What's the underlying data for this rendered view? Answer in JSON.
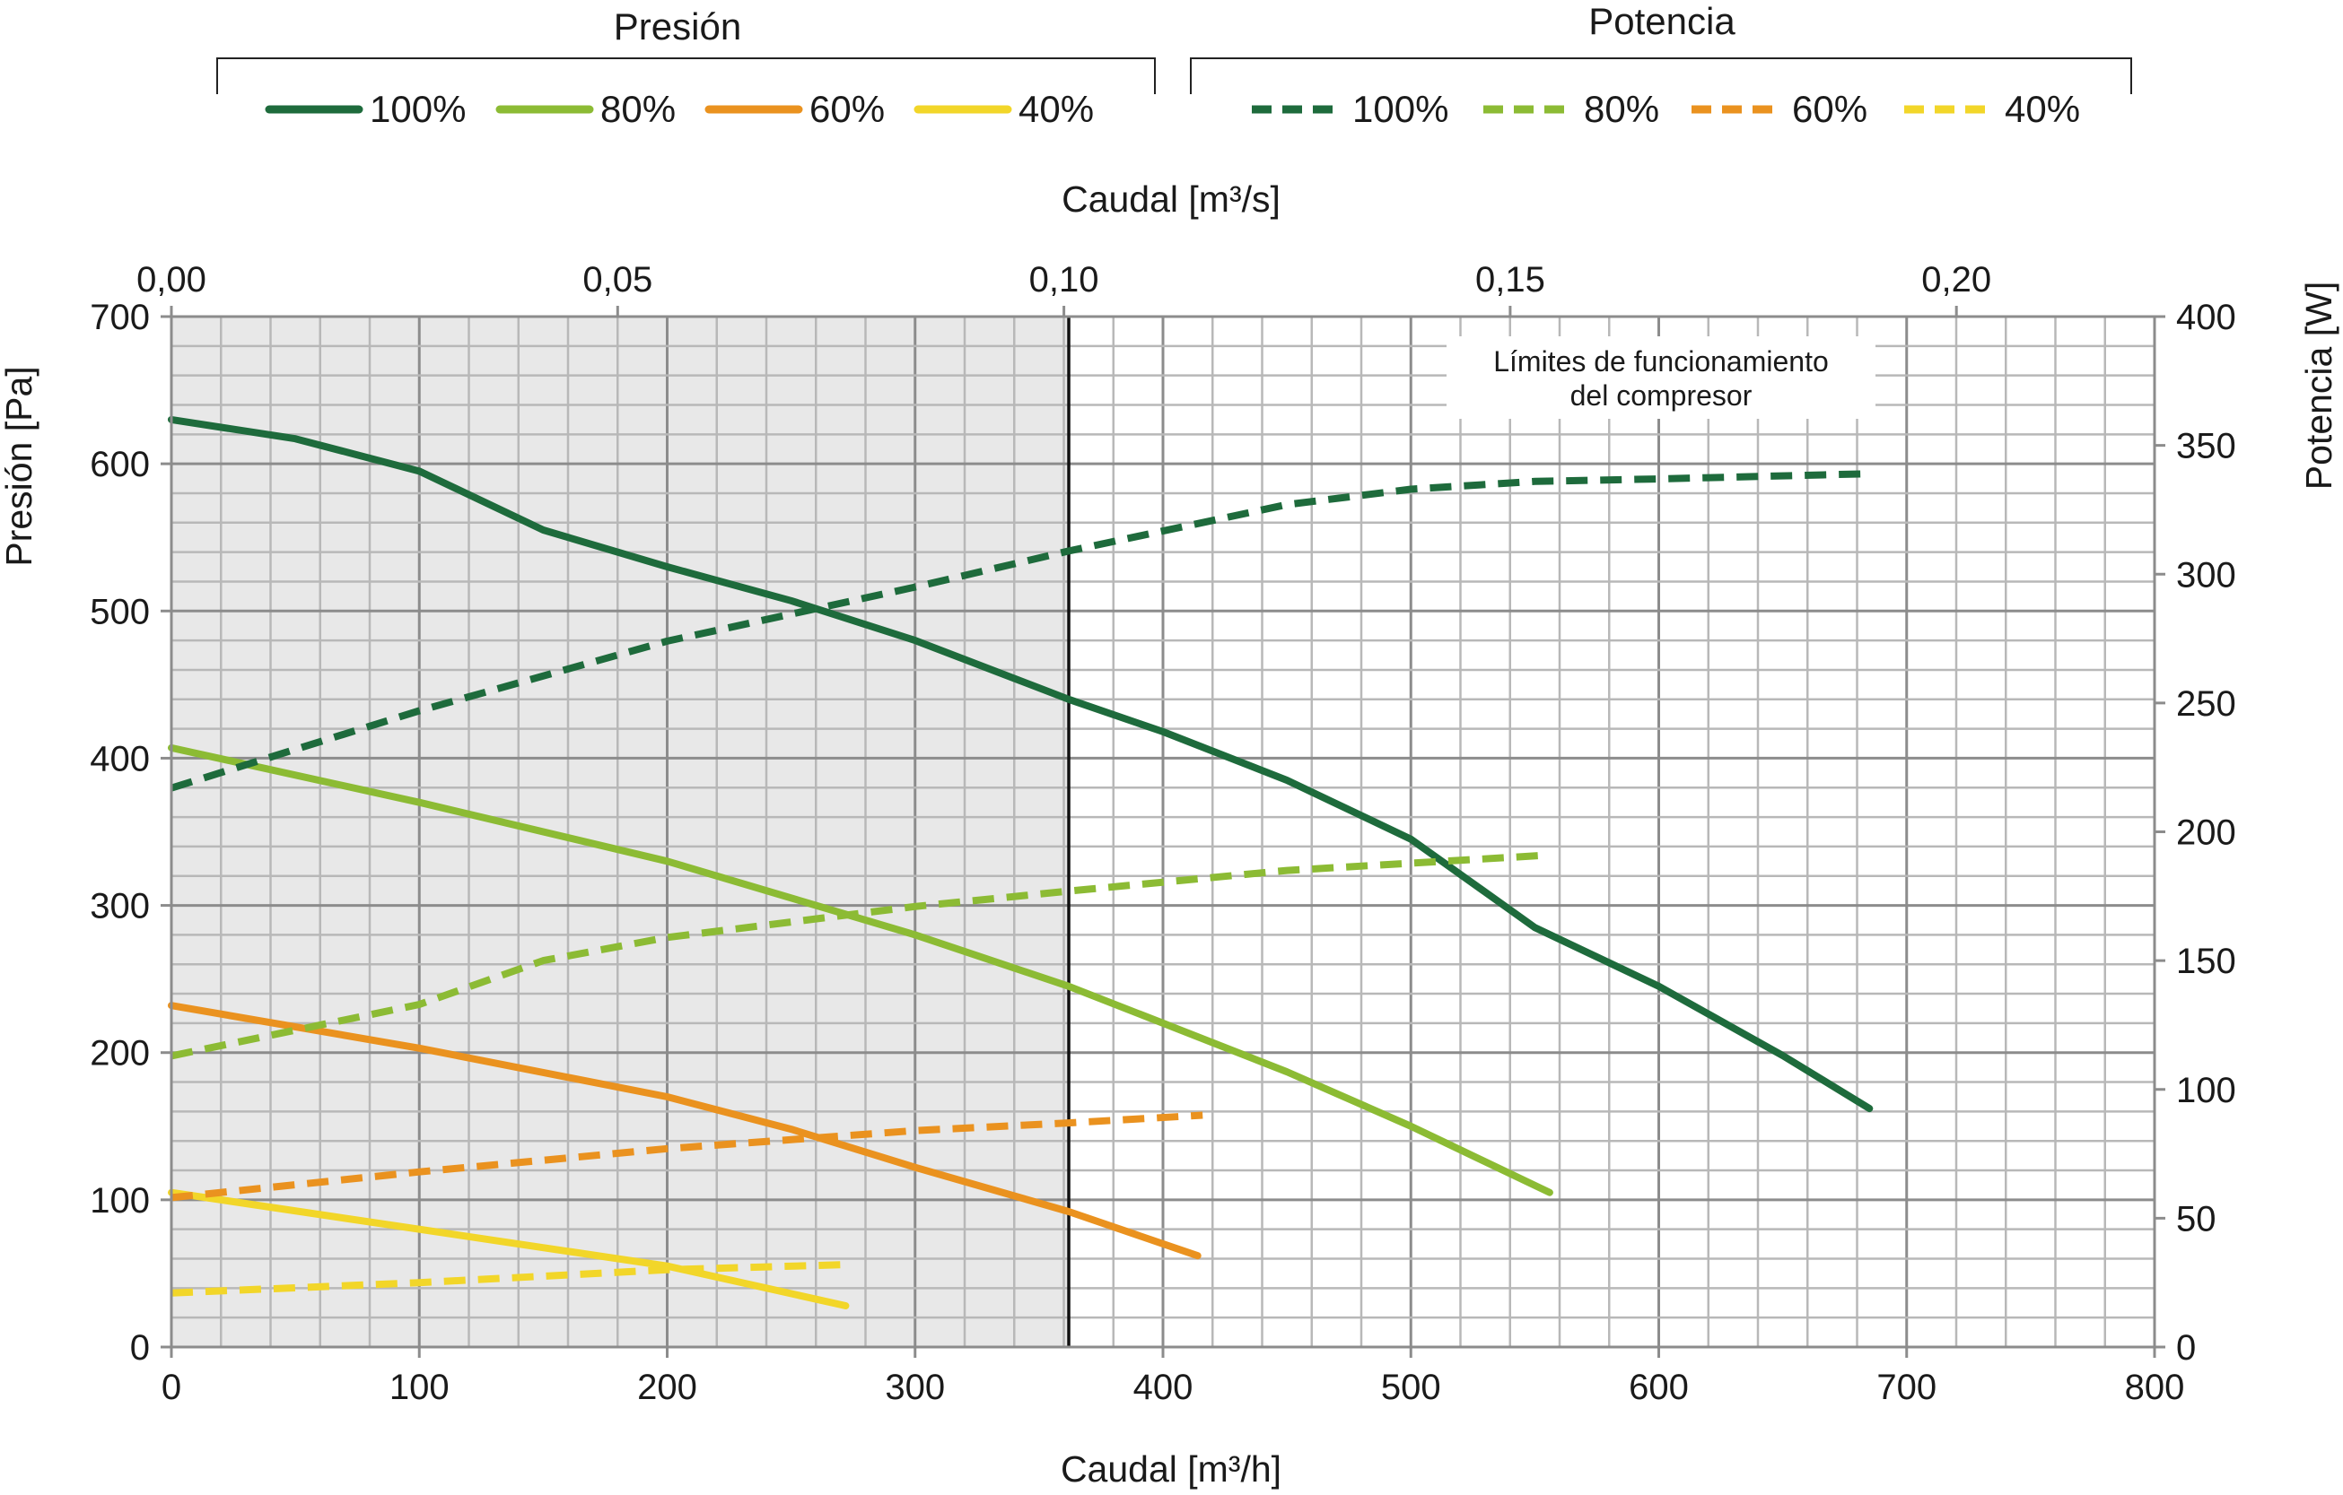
{
  "chart_data": {
    "type": "line",
    "legend": {
      "position": "top",
      "groups": [
        {
          "title": "Presión",
          "entries": [
            "100%",
            "80%",
            "60%",
            "40%"
          ],
          "style": "solid"
        },
        {
          "title": "Potencia",
          "entries": [
            "100%",
            "80%",
            "60%",
            "40%"
          ],
          "style": "dashed"
        }
      ]
    },
    "x_axis": {
      "label": "Caudal [m³/h]",
      "range": [
        0,
        800
      ],
      "ticks": [
        "0",
        "100",
        "200",
        "300",
        "400",
        "500",
        "600",
        "700",
        "800"
      ]
    },
    "x2_axis": {
      "label": "Caudal [m³/s]",
      "range": [
        0,
        0.2222
      ],
      "ticks": [
        "0,00",
        "0,05",
        "0,10",
        "0,15",
        "0,20"
      ],
      "tick_values": [
        0,
        0.05,
        0.1,
        0.15,
        0.2
      ]
    },
    "y_axis": {
      "label": "Presión [Pa]",
      "range": [
        0,
        700
      ],
      "ticks": [
        "0",
        "100",
        "200",
        "300",
        "400",
        "500",
        "600",
        "700"
      ]
    },
    "y2_axis": {
      "label": "Potencia [W]",
      "range": [
        0,
        400
      ],
      "ticks": [
        "0",
        "50",
        "100",
        "150",
        "200",
        "250",
        "300",
        "350",
        "400"
      ]
    },
    "grid": true,
    "shaded_region": {
      "x_from": 0,
      "x_to": 362
    },
    "annotation": {
      "x": 362,
      "lines": [
        "Límites de funcionamiento",
        "del compresor"
      ]
    },
    "colors": {
      "100%": "#1e6b3c",
      "80%": "#8cbb34",
      "60%": "#ea921f",
      "40%": "#f2d629"
    },
    "series": [
      {
        "group": "Presión",
        "name": "100%",
        "axis": "left",
        "style": "solid",
        "points": [
          [
            0,
            630
          ],
          [
            50,
            617
          ],
          [
            100,
            595
          ],
          [
            150,
            555
          ],
          [
            200,
            530
          ],
          [
            250,
            507
          ],
          [
            300,
            480
          ],
          [
            362,
            440
          ],
          [
            400,
            418
          ],
          [
            450,
            385
          ],
          [
            500,
            345
          ],
          [
            550,
            285
          ],
          [
            600,
            245
          ],
          [
            650,
            198
          ],
          [
            685,
            162
          ]
        ]
      },
      {
        "group": "Presión",
        "name": "80%",
        "axis": "left",
        "style": "solid",
        "points": [
          [
            0,
            407
          ],
          [
            100,
            370
          ],
          [
            200,
            330
          ],
          [
            300,
            280
          ],
          [
            362,
            245
          ],
          [
            400,
            220
          ],
          [
            450,
            187
          ],
          [
            500,
            150
          ],
          [
            556,
            105
          ]
        ]
      },
      {
        "group": "Presión",
        "name": "60%",
        "axis": "left",
        "style": "solid",
        "points": [
          [
            0,
            232
          ],
          [
            100,
            203
          ],
          [
            200,
            170
          ],
          [
            250,
            148
          ],
          [
            300,
            122
          ],
          [
            362,
            92
          ],
          [
            414,
            62
          ]
        ]
      },
      {
        "group": "Presión",
        "name": "40%",
        "axis": "left",
        "style": "solid",
        "points": [
          [
            0,
            105
          ],
          [
            100,
            80
          ],
          [
            200,
            55
          ],
          [
            272,
            28
          ]
        ]
      },
      {
        "group": "Potencia",
        "name": "100%",
        "axis": "right",
        "style": "dashed",
        "points": [
          [
            0,
            217
          ],
          [
            100,
            247
          ],
          [
            200,
            274
          ],
          [
            300,
            295
          ],
          [
            362,
            309
          ],
          [
            450,
            327
          ],
          [
            500,
            333
          ],
          [
            550,
            336
          ],
          [
            600,
            337
          ],
          [
            685,
            339
          ]
        ]
      },
      {
        "group": "Potencia",
        "name": "80%",
        "axis": "right",
        "style": "dashed",
        "points": [
          [
            0,
            113
          ],
          [
            100,
            133
          ],
          [
            150,
            150
          ],
          [
            200,
            159
          ],
          [
            300,
            171
          ],
          [
            362,
            177
          ],
          [
            450,
            185
          ],
          [
            556,
            191
          ]
        ]
      },
      {
        "group": "Potencia",
        "name": "60%",
        "axis": "right",
        "style": "dashed",
        "points": [
          [
            0,
            58
          ],
          [
            100,
            68
          ],
          [
            200,
            77
          ],
          [
            300,
            84
          ],
          [
            362,
            87
          ],
          [
            416,
            90
          ]
        ]
      },
      {
        "group": "Potencia",
        "name": "40%",
        "axis": "right",
        "style": "dashed",
        "points": [
          [
            0,
            21
          ],
          [
            100,
            25
          ],
          [
            200,
            30
          ],
          [
            272,
            32
          ]
        ]
      }
    ]
  }
}
